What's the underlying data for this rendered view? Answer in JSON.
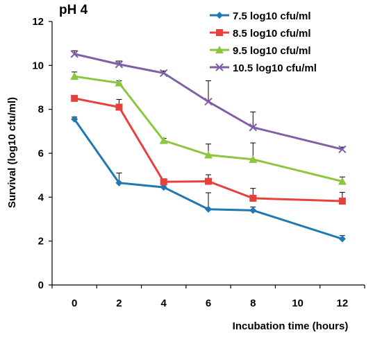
{
  "chart_data": {
    "type": "line",
    "title": "pH 4",
    "xlabel": "Incubation time (hours)",
    "ylabel": "Survival (log10 cfu/ml)",
    "xlim": [
      -1,
      13
    ],
    "ylim": [
      0,
      12
    ],
    "xticks": [
      "0",
      "2",
      "4",
      "6",
      "8",
      "10",
      "12"
    ],
    "yticks": [
      "0",
      "2",
      "4",
      "6",
      "8",
      "10",
      "12"
    ],
    "grid": false,
    "legend_position": "top-right",
    "x": [
      0,
      2,
      4,
      6,
      8,
      12
    ],
    "series": [
      {
        "name": "7.5 log10 cfu/ml",
        "color": "#1f77b4",
        "marker": "diamond",
        "values": [
          7.55,
          4.65,
          4.45,
          3.45,
          3.4,
          2.1
        ],
        "errors": [
          0.1,
          0.45,
          0.1,
          0.75,
          0.15,
          0.15
        ]
      },
      {
        "name": "8.5 log10  cfu/ml",
        "color": "#e8413c",
        "marker": "square",
        "values": [
          8.5,
          8.1,
          4.7,
          4.72,
          3.95,
          3.82
        ],
        "errors": [
          0.1,
          0.35,
          0.1,
          0.3,
          0.45,
          0.4
        ]
      },
      {
        "name": "9.5 log10 cfu/ml",
        "color": "#8cc63f",
        "marker": "triangle",
        "values": [
          9.5,
          9.2,
          6.58,
          5.92,
          5.72,
          4.72
        ],
        "errors": [
          0.2,
          0.1,
          0.1,
          0.5,
          0.75,
          0.2
        ]
      },
      {
        "name": "10.5 log10 cfu/ml",
        "color": "#7f5fa8",
        "marker": "x",
        "values": [
          10.52,
          10.05,
          9.65,
          8.35,
          7.18,
          6.18
        ],
        "errors": [
          0.15,
          0.15,
          0.1,
          0.95,
          0.7,
          0.1
        ]
      }
    ]
  }
}
